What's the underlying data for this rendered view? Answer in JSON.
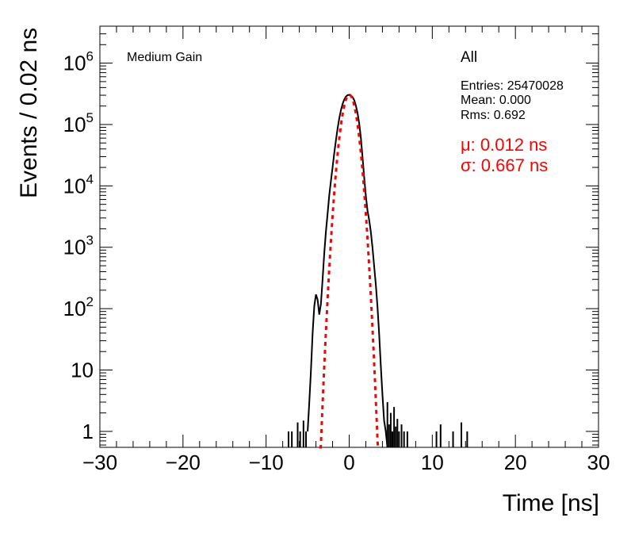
{
  "chart_data": {
    "type": "histogram",
    "xlabel": "Time [ns]",
    "ylabel": "Events / 0.02 ns",
    "xlim": [
      -30,
      30
    ],
    "ylim": [
      0.55,
      4000000
    ],
    "yscale": "log",
    "x_ticks": [
      -30,
      -20,
      -10,
      0,
      10,
      20,
      30
    ],
    "x_tick_labels": [
      "−30",
      "−20",
      "−10",
      "0",
      "10",
      "20",
      "30"
    ],
    "y_ticks": [
      1,
      10,
      100,
      1000,
      10000,
      100000,
      1000000
    ],
    "y_tick_labels": [
      {
        "base": "1",
        "exp": ""
      },
      {
        "base": "10",
        "exp": ""
      },
      {
        "base": "10",
        "exp": "2"
      },
      {
        "base": "10",
        "exp": "3"
      },
      {
        "base": "10",
        "exp": "4"
      },
      {
        "base": "10",
        "exp": "5"
      },
      {
        "base": "10",
        "exp": "6"
      }
    ],
    "annotations": {
      "panel": "Medium Gain",
      "selection": "All",
      "entries": "Entries: 25470028",
      "mean": "Mean: 0.000",
      "rms": "Rms: 0.692",
      "mu": "μ: 0.012 ns",
      "sigma": "σ: 0.667 ns"
    },
    "series": [
      {
        "style": "histogram-line",
        "color": "#000000",
        "x": [
          -5.0,
          -4.8,
          -4.6,
          -4.4,
          -4.2,
          -4.0,
          -3.8,
          -3.6,
          -3.4,
          -3.2,
          -3.0,
          -2.8,
          -2.6,
          -2.4,
          -2.2,
          -2.0,
          -1.8,
          -1.6,
          -1.4,
          -1.2,
          -1.0,
          -0.8,
          -0.6,
          -0.4,
          -0.2,
          0.0,
          0.2,
          0.4,
          0.6,
          0.8,
          1.0,
          1.2,
          1.4,
          1.6,
          1.8,
          2.0,
          2.2,
          2.4,
          2.6,
          2.8,
          3.0,
          3.2,
          3.4,
          3.6,
          3.8,
          4.0,
          4.2,
          4.4,
          4.6
        ],
        "y": [
          1,
          3,
          10,
          40,
          110,
          170,
          140,
          80,
          120,
          300,
          800,
          1800,
          3500,
          7000,
          12000,
          20000,
          34000,
          55000,
          85000,
          125000,
          170000,
          215000,
          255000,
          285000,
          300000,
          305000,
          298000,
          280000,
          250000,
          205000,
          155000,
          105000,
          62000,
          30000,
          14000,
          7000,
          4000,
          2800,
          1800,
          1000,
          500,
          250,
          110,
          40,
          12,
          4,
          1.5,
          1,
          0.55
        ]
      },
      {
        "style": "dotted-fit",
        "color": "#ff0000",
        "mu": 0.012,
        "sigma": 0.667,
        "amplitude": 305000,
        "x_range": [
          -3.6,
          3.6
        ]
      }
    ],
    "spikes": [
      {
        "x": -7.3,
        "y": 1
      },
      {
        "x": -6.9,
        "y": 1
      },
      {
        "x": -6.2,
        "y": 1.4
      },
      {
        "x": -5.9,
        "y": 1
      },
      {
        "x": -5.5,
        "y": 1.5
      },
      {
        "x": -5.2,
        "y": 1
      },
      {
        "x": 4.6,
        "y": 3
      },
      {
        "x": 4.8,
        "y": 1.3
      },
      {
        "x": 5.0,
        "y": 2
      },
      {
        "x": 5.2,
        "y": 1
      },
      {
        "x": 5.4,
        "y": 2.5
      },
      {
        "x": 5.6,
        "y": 1.2
      },
      {
        "x": 5.8,
        "y": 1.6
      },
      {
        "x": 6.0,
        "y": 1
      },
      {
        "x": 6.3,
        "y": 1.3
      },
      {
        "x": 6.6,
        "y": 1
      },
      {
        "x": 7.0,
        "y": 1
      },
      {
        "x": 10.5,
        "y": 1
      },
      {
        "x": 11.0,
        "y": 1.3
      },
      {
        "x": 12.5,
        "y": 1
      },
      {
        "x": 13.5,
        "y": 1.4
      },
      {
        "x": 14.2,
        "y": 1
      }
    ]
  }
}
